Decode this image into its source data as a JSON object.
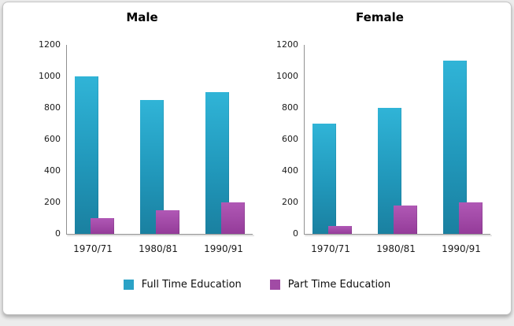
{
  "chart_data": [
    {
      "type": "bar",
      "title": "Male",
      "categories": [
        "1970/71",
        "1980/81",
        "1990/91"
      ],
      "series": [
        {
          "name": "Full Time Education",
          "color": "#2ba2c6",
          "values": [
            1000,
            850,
            900
          ]
        },
        {
          "name": "Part Time Education",
          "color": "#a14ba5",
          "values": [
            100,
            150,
            200
          ]
        }
      ],
      "xlabel": "",
      "ylabel": "",
      "ylim": [
        0,
        1200
      ],
      "yticks": [
        0,
        200,
        400,
        600,
        800,
        1000,
        1200
      ],
      "grid": false,
      "legend_position": "bottom",
      "bar_style": "overlapped-cluster"
    },
    {
      "type": "bar",
      "title": "Female",
      "categories": [
        "1970/71",
        "1980/81",
        "1990/91"
      ],
      "series": [
        {
          "name": "Full Time Education",
          "color": "#2ba2c6",
          "values": [
            700,
            800,
            1100
          ]
        },
        {
          "name": "Part Time Education",
          "color": "#a14ba5",
          "values": [
            50,
            180,
            200
          ]
        }
      ],
      "xlabel": "",
      "ylabel": "",
      "ylim": [
        0,
        1200
      ],
      "yticks": [
        0,
        200,
        400,
        600,
        800,
        1000,
        1200
      ],
      "grid": false,
      "legend_position": "bottom",
      "bar_style": "overlapped-cluster"
    }
  ],
  "legend": {
    "items": [
      {
        "label": "Full Time Education",
        "color": "#2ba2c6"
      },
      {
        "label": "Part Time Education",
        "color": "#a14ba5"
      }
    ]
  }
}
